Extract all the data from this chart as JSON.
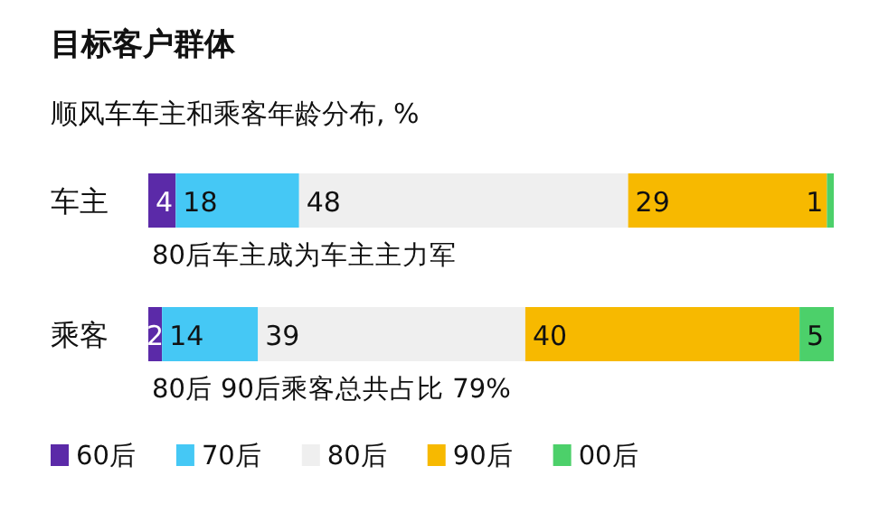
{
  "chart_data": {
    "type": "bar",
    "orientation": "horizontal",
    "stacked": true,
    "data_labels": true,
    "legend": "bottom",
    "title": "目标客户群体",
    "subtitle": "顺风车车主和乘客年龄分布, %",
    "categories": [
      "车主",
      "乘客"
    ],
    "series": [
      {
        "name": "60后",
        "color": "#5b2aa8",
        "values": [
          4,
          2
        ]
      },
      {
        "name": "70后",
        "color": "#45c8f5",
        "values": [
          18,
          14
        ]
      },
      {
        "name": "80后",
        "color": "#efefef",
        "values": [
          48,
          39
        ]
      },
      {
        "name": "90后",
        "color": "#f7b900",
        "values": [
          29,
          40
        ]
      },
      {
        "name": "00后",
        "color": "#4cd06a",
        "values": [
          1,
          5
        ]
      }
    ],
    "annotations": [
      "80后车主成为车主主力军",
      "80后 90后乘客总共占比 79%"
    ]
  }
}
